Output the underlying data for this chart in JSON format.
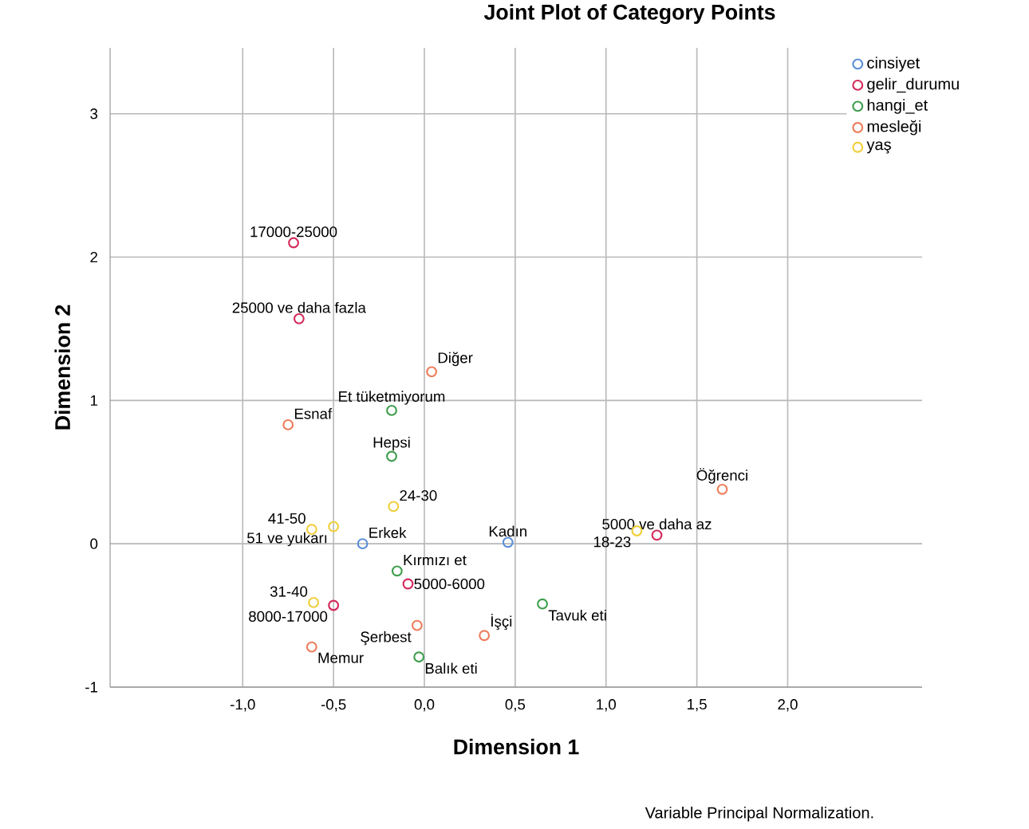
{
  "chart_data": {
    "type": "scatter",
    "title": "Joint Plot of Category Points",
    "xlabel": "Dimension 1",
    "ylabel": "Dimension 2",
    "xlim": [
      -1.73,
      2.74
    ],
    "ylim": [
      -1,
      3.46
    ],
    "xticks": [
      {
        "value": -1.0,
        "label": "-1,0"
      },
      {
        "value": -0.5,
        "label": "-0,5"
      },
      {
        "value": 0.0,
        "label": "0,0"
      },
      {
        "value": 0.5,
        "label": "0,5"
      },
      {
        "value": 1.0,
        "label": "1,0"
      },
      {
        "value": 1.5,
        "label": "1,5"
      },
      {
        "value": 2.0,
        "label": "2,0"
      }
    ],
    "yticks": [
      -1,
      0,
      1,
      2,
      3
    ],
    "grid": true,
    "legend": "top right",
    "marker": "circle",
    "series": [
      {
        "name": "cinsiyet",
        "color": "#5b8fd9",
        "x": [
          -0.34,
          0.46
        ],
        "values": [
          0.0,
          0.01
        ]
      },
      {
        "name": "gelir_durumu",
        "color": "#d42a5a",
        "x": [
          -0.72,
          -0.69,
          1.28,
          -0.09,
          -0.5
        ],
        "values": [
          2.1,
          1.57,
          0.06,
          -0.28,
          -0.43
        ]
      },
      {
        "name": "hangi_et",
        "color": "#3f9e4d",
        "x": [
          -0.18,
          -0.18,
          -0.15,
          0.65,
          -0.03
        ],
        "values": [
          0.93,
          0.61,
          -0.19,
          -0.42,
          -0.79
        ]
      },
      {
        "name": "mesleği",
        "color": "#ee7d5c",
        "x": [
          0.04,
          -0.75,
          1.64,
          0.33,
          -0.04,
          -0.62
        ],
        "values": [
          1.2,
          0.83,
          0.38,
          -0.64,
          -0.57,
          -0.72
        ]
      },
      {
        "name": "yaş",
        "color": "#f0cf3c",
        "x": [
          -0.62,
          -0.5,
          -0.17,
          1.17,
          -0.61
        ],
        "values": [
          0.1,
          0.12,
          0.26,
          0.09,
          -0.41
        ]
      }
    ],
    "annotations": [
      {
        "text": "Erkek",
        "x": -0.34,
        "y": 0.0
      },
      {
        "text": "Kadın",
        "x": 0.46,
        "y": 0.01
      },
      {
        "text": "17000-25000",
        "x": -0.72,
        "y": 2.1
      },
      {
        "text": "25000 ve daha fazla",
        "x": -0.69,
        "y": 1.57
      },
      {
        "text": "5000 ve daha az",
        "x": 1.28,
        "y": 0.06
      },
      {
        "text": "5000-6000",
        "x": -0.09,
        "y": -0.28
      },
      {
        "text": "8000-17000",
        "x": -0.5,
        "y": -0.43
      },
      {
        "text": "Et tüketmiyorum",
        "x": -0.18,
        "y": 0.93
      },
      {
        "text": "Hepsi",
        "x": -0.18,
        "y": 0.61
      },
      {
        "text": "Kırmızı et",
        "x": -0.15,
        "y": -0.19
      },
      {
        "text": "Tavuk eti",
        "x": 0.65,
        "y": -0.42
      },
      {
        "text": "Balık eti",
        "x": -0.03,
        "y": -0.79
      },
      {
        "text": "Diğer",
        "x": 0.04,
        "y": 1.2
      },
      {
        "text": "Esnaf",
        "x": -0.75,
        "y": 0.83
      },
      {
        "text": "Öğrenci",
        "x": 1.64,
        "y": 0.38
      },
      {
        "text": "İşçi",
        "x": 0.33,
        "y": -0.64
      },
      {
        "text": "Şerbest",
        "x": -0.04,
        "y": -0.57
      },
      {
        "text": "Memur",
        "x": -0.62,
        "y": -0.72
      },
      {
        "text": "41-50",
        "x": -0.62,
        "y": 0.1
      },
      {
        "text": "51 ve yukarı",
        "x": -0.5,
        "y": 0.12
      },
      {
        "text": "24-30",
        "x": -0.17,
        "y": 0.26
      },
      {
        "text": "18-23",
        "x": 1.17,
        "y": 0.09
      },
      {
        "text": "31-40",
        "x": -0.61,
        "y": -0.41
      },
      "Variable Principal Normalization."
    ]
  }
}
